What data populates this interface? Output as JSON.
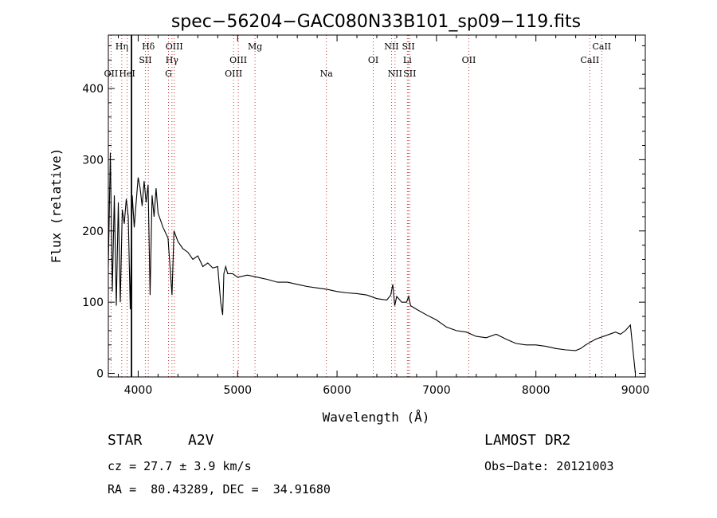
{
  "chart_data": {
    "type": "line",
    "title": "spec−56204−GAC080N33B101_sp09−119.fits",
    "xlabel": "Wavelength (Å)",
    "ylabel": "Flux (relative)",
    "xlim": [
      3700,
      9100
    ],
    "ylim": [
      -5,
      475
    ],
    "x_ticks": [
      4000,
      5000,
      6000,
      7000,
      8000,
      9000
    ],
    "y_ticks": [
      0,
      100,
      200,
      300,
      400
    ],
    "grid": false,
    "series": [
      {
        "x": [
          3700,
          3720,
          3740,
          3760,
          3780,
          3800,
          3820,
          3840,
          3860,
          3880,
          3900,
          3920,
          3940,
          3960,
          3980,
          4000,
          4020,
          4040,
          4060,
          4080,
          4100,
          4120,
          4140,
          4160,
          4180,
          4200,
          4250,
          4300,
          4340,
          4360,
          4400,
          4450,
          4500,
          4550,
          4600,
          4650,
          4700,
          4750,
          4800,
          4830,
          4850,
          4862,
          4880,
          4900,
          4950,
          5000,
          5100,
          5200,
          5300,
          5400,
          5500,
          5600,
          5700,
          5800,
          5900,
          6000,
          6100,
          6200,
          6300,
          6400,
          6500,
          6540,
          6560,
          6580,
          6600,
          6650,
          6700,
          6720,
          6740,
          6800,
          6900,
          7000,
          7100,
          7200,
          7300,
          7400,
          7500,
          7600,
          7700,
          7800,
          7900,
          8000,
          8100,
          8200,
          8300,
          8400,
          8450,
          8500,
          8600,
          8700,
          8800,
          8850,
          8900,
          8950,
          9000
        ],
        "y": [
          150,
          310,
          115,
          250,
          95,
          240,
          100,
          230,
          210,
          245,
          220,
          90,
          250,
          205,
          240,
          275,
          260,
          235,
          270,
          240,
          265,
          110,
          250,
          220,
          260,
          225,
          205,
          190,
          110,
          200,
          185,
          175,
          170,
          160,
          165,
          150,
          155,
          148,
          150,
          100,
          82,
          140,
          150,
          140,
          140,
          135,
          138,
          135,
          132,
          128,
          128,
          125,
          122,
          120,
          118,
          115,
          113,
          112,
          110,
          105,
          103,
          110,
          125,
          95,
          108,
          100,
          100,
          108,
          95,
          90,
          82,
          75,
          65,
          60,
          58,
          52,
          50,
          55,
          48,
          42,
          40,
          40,
          38,
          35,
          33,
          32,
          35,
          40,
          48,
          53,
          58,
          55,
          60,
          68,
          0
        ]
      }
    ],
    "annotations": [
      {
        "label": "Hη",
        "x": 3835,
        "row": 1
      },
      {
        "label": "OII",
        "x": 3727,
        "row": 3
      },
      {
        "label": "HeI",
        "x": 3889,
        "row": 3
      },
      {
        "label": "Hδ",
        "x": 4102,
        "row": 1
      },
      {
        "label": "SII",
        "x": 4072,
        "row": 2
      },
      {
        "label": "OIII",
        "x": 4363,
        "row": 1
      },
      {
        "label": "Hγ",
        "x": 4340,
        "row": 2
      },
      {
        "label": "G",
        "x": 4305,
        "row": 3
      },
      {
        "label": "Mg",
        "x": 5175,
        "row": 1
      },
      {
        "label": "OIII",
        "x": 5007,
        "row": 2
      },
      {
        "label": "OIII",
        "x": 4959,
        "row": 3
      },
      {
        "label": "Na",
        "x": 5893,
        "row": 3
      },
      {
        "label": "OI",
        "x": 6364,
        "row": 2
      },
      {
        "label": "NII",
        "x": 6548,
        "row": 1
      },
      {
        "label": "SII",
        "x": 6717,
        "row": 1
      },
      {
        "label": "Li",
        "x": 6707,
        "row": 2
      },
      {
        "label": "NII",
        "x": 6583,
        "row": 3
      },
      {
        "label": "SII",
        "x": 6731,
        "row": 3
      },
      {
        "label": "OII",
        "x": 7325,
        "row": 2
      },
      {
        "label": "CaII",
        "x": 8662,
        "row": 1
      },
      {
        "label": "CaII",
        "x": 8542,
        "row": 2
      }
    ],
    "line_markers": [
      {
        "x": 3727,
        "color": "#cc3333",
        "style": "dotted"
      },
      {
        "x": 3835,
        "color": "#cc3333",
        "style": "dotted"
      },
      {
        "x": 3889,
        "color": "#cc3333",
        "style": "dotted"
      },
      {
        "x": 3933,
        "color": "#000000",
        "style": "solid"
      },
      {
        "x": 4072,
        "color": "#cc3333",
        "style": "dotted"
      },
      {
        "x": 4102,
        "color": "#cc3333",
        "style": "dotted"
      },
      {
        "x": 4305,
        "color": "#cc3333",
        "style": "dotted"
      },
      {
        "x": 4340,
        "color": "#cc3333",
        "style": "dotted"
      },
      {
        "x": 4363,
        "color": "#cc3333",
        "style": "dotted"
      },
      {
        "x": 4959,
        "color": "#cc3333",
        "style": "dotted"
      },
      {
        "x": 5007,
        "color": "#cc3333",
        "style": "dotted"
      },
      {
        "x": 5175,
        "color": "#cc3333",
        "style": "dotted"
      },
      {
        "x": 5893,
        "color": "#cc3333",
        "style": "dotted"
      },
      {
        "x": 6364,
        "color": "#cc3333",
        "style": "dotted"
      },
      {
        "x": 6548,
        "color": "#cc3333",
        "style": "dotted"
      },
      {
        "x": 6583,
        "color": "#cc3333",
        "style": "dotted"
      },
      {
        "x": 6707,
        "color": "#cc3333",
        "style": "dotted"
      },
      {
        "x": 6717,
        "color": "#cc3333",
        "style": "dotted"
      },
      {
        "x": 6731,
        "color": "#cc3333",
        "style": "dotted"
      },
      {
        "x": 7325,
        "color": "#cc3333",
        "style": "dotted"
      },
      {
        "x": 8542,
        "color": "#cc3333",
        "style": "dotted"
      },
      {
        "x": 8662,
        "color": "#cc3333",
        "style": "dotted"
      }
    ]
  },
  "info": {
    "object_class": "STAR",
    "subclass": "A2V",
    "survey": "LAMOST DR2",
    "redshift": "cz = 27.7 ± 3.9 km/s",
    "obs_date": "Obs−Date: 20121003",
    "coords": "RA =  80.43289, DEC =  34.91680"
  }
}
